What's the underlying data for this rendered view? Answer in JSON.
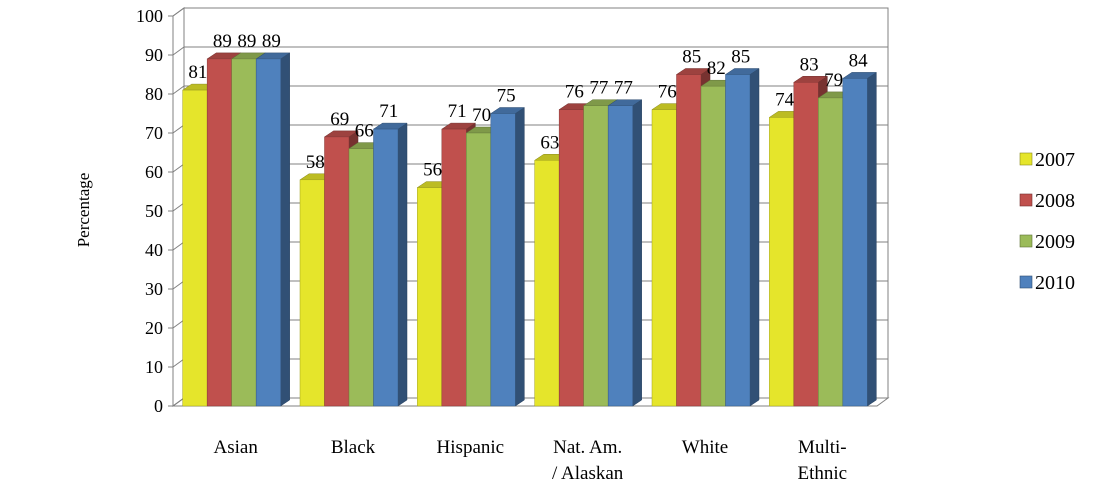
{
  "chart_data": {
    "type": "bar",
    "ylabel": "Percentage",
    "ylim": [
      0,
      100
    ],
    "yticks": [
      0,
      10,
      20,
      30,
      40,
      50,
      60,
      70,
      80,
      90,
      100
    ],
    "grid": true,
    "legend_position": "right",
    "categories": [
      [
        "Asian"
      ],
      [
        "Black"
      ],
      [
        "Hispanic"
      ],
      [
        "Nat. Am.",
        "/ Alaskan"
      ],
      [
        "White"
      ],
      [
        "Multi-",
        "Ethnic"
      ]
    ],
    "series": [
      {
        "name": "2007",
        "color": "#E5E52B",
        "values": [
          81,
          58,
          56,
          63,
          76,
          74
        ]
      },
      {
        "name": "2008",
        "color": "#C0504D",
        "values": [
          89,
          69,
          71,
          76,
          85,
          83
        ]
      },
      {
        "name": "2009",
        "color": "#9BBB59",
        "values": [
          89,
          66,
          70,
          77,
          82,
          79
        ]
      },
      {
        "name": "2010",
        "color": "#4F81BD",
        "values": [
          89,
          71,
          75,
          77,
          85,
          84
        ]
      }
    ]
  }
}
